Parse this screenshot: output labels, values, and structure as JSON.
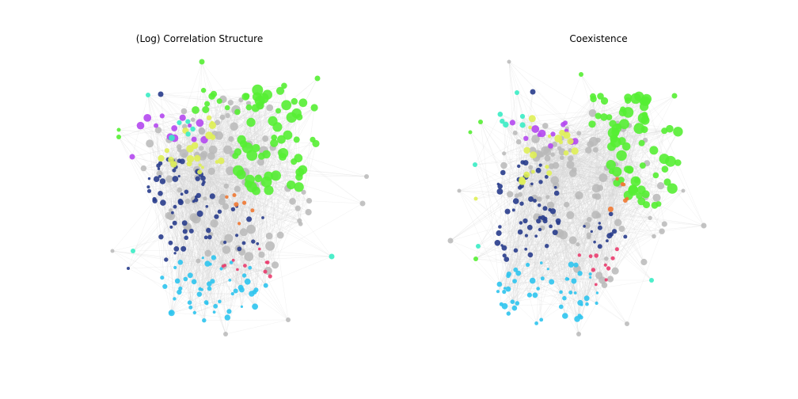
{
  "panels": [
    {
      "title": "(Log) Correlation Structure"
    },
    {
      "title": "Coexistence"
    }
  ],
  "colors": {
    "green": "#55ee33",
    "gray": "#b9b9b9",
    "navy": "#283c8c",
    "cyan": "#2ec4ee",
    "purple": "#b448f0",
    "lime": "#dff055",
    "teal": "#3aecc4",
    "orange": "#f07832",
    "pink": "#ea3c6e",
    "yellow": "#f4c82c",
    "edge": "#d4d4d4"
  }
}
